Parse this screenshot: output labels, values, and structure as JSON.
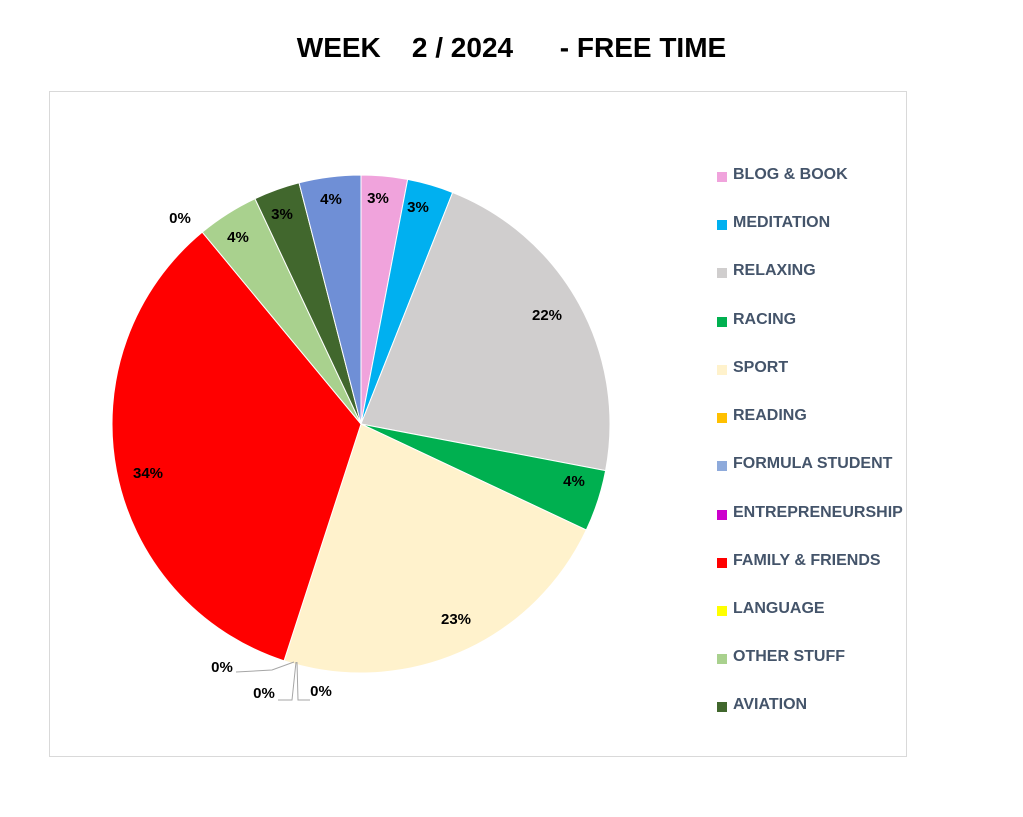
{
  "page": {
    "title": "WEEK    2 / 2024      - FREE TIME"
  },
  "chart_data": {
    "type": "pie",
    "title": "WEEK    2 / 2024      - FREE TIME",
    "legend_position": "right",
    "slices": [
      {
        "label": "BLOG & BOOK",
        "value": 3,
        "display": "3%",
        "color": "#f0a3dc"
      },
      {
        "label": "MEDITATION",
        "value": 3,
        "display": "3%",
        "color": "#00b0f0"
      },
      {
        "label": "RELAXING",
        "value": 22,
        "display": "22%",
        "color": "#d0cece"
      },
      {
        "label": "RACING",
        "value": 4,
        "display": "4%",
        "color": "#00b050"
      },
      {
        "label": "SPORT",
        "value": 23,
        "display": "23%",
        "color": "#fff2cc"
      },
      {
        "label": "READING",
        "value": 0,
        "display": "0%",
        "color": "#ffc000"
      },
      {
        "label": "FORMULA STUDENT",
        "value": 0,
        "display": "0%",
        "color": "#8eaadb"
      },
      {
        "label": "ENTREPRENEURSHIP",
        "value": 0,
        "display": "0%",
        "color": "#cc00cc"
      },
      {
        "label": "FAMILY & FRIENDS",
        "value": 34,
        "display": "34%",
        "color": "#ff0000"
      },
      {
        "label": "LANGUAGE",
        "value": 0,
        "display": "0%",
        "color": "#ffff00"
      },
      {
        "label": "OTHER STUFF",
        "value": 4,
        "display": "4%",
        "color": "#a9d18e"
      },
      {
        "label": "AVIATION",
        "value": 3,
        "display": "3%",
        "color": "#41672d"
      },
      {
        "label": "",
        "value": 4,
        "display": "4%",
        "color": "#6f8fd6"
      }
    ]
  }
}
